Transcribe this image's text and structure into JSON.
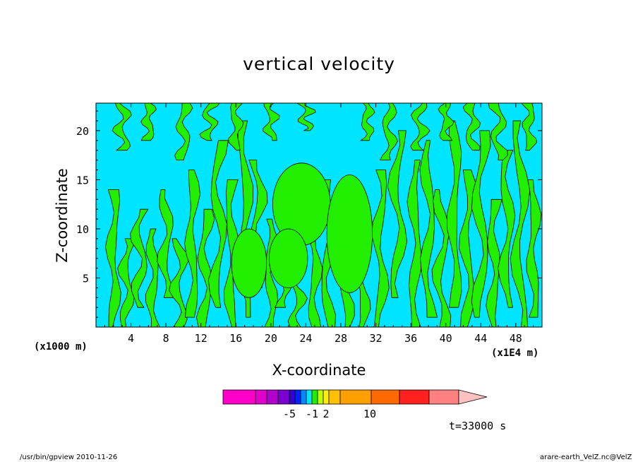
{
  "chart_data": {
    "type": "heatmap",
    "title": "vertical velocity",
    "xlabel": "X-coordinate",
    "ylabel": "Z-coordinate",
    "x_unit": "(x1000 m)",
    "x_multiplier": "(x1E4 m)",
    "xlim": [
      0,
      51
    ],
    "ylim": [
      0,
      22.8
    ],
    "x_ticks": [
      4,
      8,
      12,
      16,
      20,
      24,
      28,
      32,
      36,
      40,
      44,
      48
    ],
    "y_ticks": [
      5,
      10,
      15,
      20
    ],
    "colors": {
      "cyan_region": "#00e5ff",
      "green_region": "#22ee00",
      "contour_line": "#000000"
    },
    "green_features": [
      {
        "x": 2,
        "z_from": 0,
        "z_to": 14
      },
      {
        "x": 3.5,
        "z_from": 0,
        "z_to": 9
      },
      {
        "x": 5,
        "z_from": 2,
        "z_to": 12
      },
      {
        "x": 6.5,
        "z_from": 0,
        "z_to": 10
      },
      {
        "x": 8,
        "z_from": 3,
        "z_to": 14
      },
      {
        "x": 9.5,
        "z_from": 0,
        "z_to": 9
      },
      {
        "x": 11,
        "z_from": 1,
        "z_to": 16
      },
      {
        "x": 12.5,
        "z_from": 0,
        "z_to": 12
      },
      {
        "x": 14,
        "z_from": 2,
        "z_to": 19
      },
      {
        "x": 15.5,
        "z_from": 0,
        "z_to": 15
      },
      {
        "x": 17,
        "z_from": 1,
        "z_to": 21
      },
      {
        "x": 18.5,
        "z_from": 4,
        "z_to": 17
      },
      {
        "x": 20,
        "z_from": 0,
        "z_to": 11
      },
      {
        "x": 21.5,
        "z_from": 2,
        "z_to": 9
      },
      {
        "x": 23,
        "z_from": 0,
        "z_to": 7
      },
      {
        "x": 25,
        "z_from": 0,
        "z_to": 12
      },
      {
        "x": 26.5,
        "z_from": 0,
        "z_to": 15
      },
      {
        "x": 28.5,
        "z_from": 0,
        "z_to": 14
      },
      {
        "x": 30.5,
        "z_from": 0,
        "z_to": 11
      },
      {
        "x": 32.5,
        "z_from": 0,
        "z_to": 16
      },
      {
        "x": 34.5,
        "z_from": 3,
        "z_to": 20
      },
      {
        "x": 36.5,
        "z_from": 0,
        "z_to": 17
      },
      {
        "x": 38,
        "z_from": 1,
        "z_to": 19
      },
      {
        "x": 39.5,
        "z_from": 0,
        "z_to": 14
      },
      {
        "x": 41,
        "z_from": 2,
        "z_to": 21
      },
      {
        "x": 42.5,
        "z_from": 0,
        "z_to": 16
      },
      {
        "x": 44,
        "z_from": 1,
        "z_to": 20
      },
      {
        "x": 45.5,
        "z_from": 0,
        "z_to": 13
      },
      {
        "x": 47,
        "z_from": 2,
        "z_to": 18
      },
      {
        "x": 48.5,
        "z_from": 0,
        "z_to": 21
      },
      {
        "x": 50,
        "z_from": 1,
        "z_to": 15
      }
    ],
    "green_top_features": [
      {
        "x": 3,
        "z_from": 18,
        "z_to": 22.8
      },
      {
        "x": 6,
        "z_from": 19,
        "z_to": 22.8
      },
      {
        "x": 10,
        "z_from": 17,
        "z_to": 22.8
      },
      {
        "x": 13,
        "z_from": 19,
        "z_to": 22.8
      },
      {
        "x": 16,
        "z_from": 18,
        "z_to": 22.8
      },
      {
        "x": 20,
        "z_from": 19,
        "z_to": 22.8
      },
      {
        "x": 24,
        "z_from": 20,
        "z_to": 22.8
      },
      {
        "x": 31,
        "z_from": 19,
        "z_to": 22.8
      },
      {
        "x": 33.5,
        "z_from": 17,
        "z_to": 22.8
      },
      {
        "x": 37,
        "z_from": 18,
        "z_to": 22.8
      },
      {
        "x": 40,
        "z_from": 19,
        "z_to": 22.8
      },
      {
        "x": 43,
        "z_from": 18,
        "z_to": 22.8
      },
      {
        "x": 46,
        "z_from": 17,
        "z_to": 22.8
      },
      {
        "x": 49.5,
        "z_from": 18,
        "z_to": 22.8
      }
    ],
    "green_blobs": [
      {
        "x": 23.5,
        "z": 12.5,
        "rx": 3.3,
        "rz": 4.2
      },
      {
        "x": 29,
        "z": 9.5,
        "rx": 2.6,
        "rz": 6.0
      },
      {
        "x": 22,
        "z": 7,
        "rx": 2.2,
        "rz": 3.0
      },
      {
        "x": 17.5,
        "z": 6.5,
        "rx": 2.0,
        "rz": 3.5
      }
    ],
    "colorbar": {
      "segments": [
        {
          "color": "#ff00c8"
        },
        {
          "color": "#e000cc"
        },
        {
          "color": "#b000cc"
        },
        {
          "color": "#7a00cc"
        },
        {
          "color": "#3300cc"
        },
        {
          "color": "#0022ff"
        },
        {
          "color": "#0088ff"
        },
        {
          "color": "#00e5ff"
        },
        {
          "color": "#22ee00"
        },
        {
          "color": "#bbff00"
        },
        {
          "color": "#ffee00"
        },
        {
          "color": "#ffc000"
        },
        {
          "color": "#ffa000"
        },
        {
          "color": "#ff6a00"
        },
        {
          "color": "#ff2020"
        },
        {
          "color": "#ff8080"
        }
      ],
      "arrow_color": "#ffc0c0",
      "labels": [
        "-5",
        "-1",
        "2",
        "10"
      ]
    },
    "time_label": "t=33000 s"
  },
  "footer": {
    "left": "/usr/bin/gpview  2010-11-26",
    "right": "arare-earth_VelZ.nc@VelZ"
  }
}
